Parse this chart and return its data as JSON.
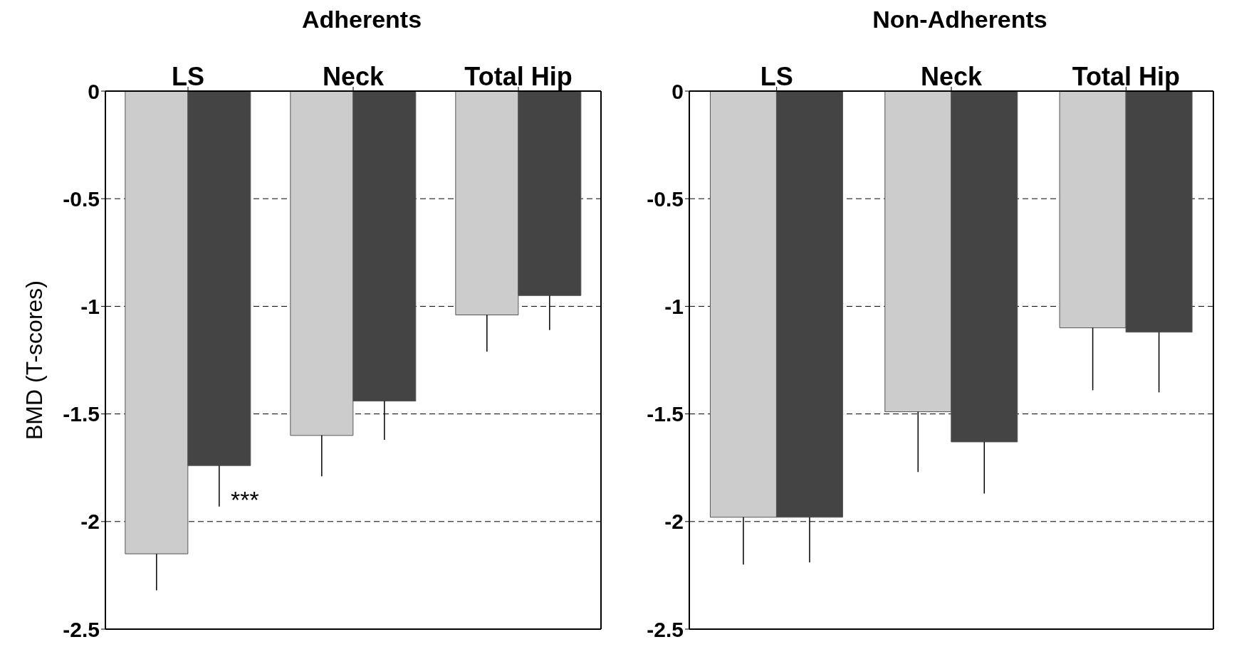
{
  "chart_data": [
    {
      "type": "bar",
      "title": "Adherents",
      "ylabel": "BMD (T-scores)",
      "categories": [
        "LS",
        "Neck",
        "Total Hip"
      ],
      "series": [
        {
          "color": "#cccccc",
          "values": [
            -2.15,
            -1.6,
            -1.04
          ],
          "errors": [
            [
              -2.32,
              -2.15
            ],
            [
              -1.79,
              -1.6
            ],
            [
              -1.21,
              -1.04
            ]
          ]
        },
        {
          "color": "#444444",
          "values": [
            -1.74,
            -1.44,
            -0.95
          ],
          "errors": [
            [
              -1.93,
              -1.74
            ],
            [
              -1.62,
              -1.44
            ],
            [
              -1.11,
              -0.95
            ]
          ]
        }
      ],
      "ylim": [
        -2.5,
        0
      ],
      "yticks": [
        0,
        -0.5,
        -1,
        -1.5,
        -2,
        -2.5
      ],
      "grid": "y",
      "legend": false,
      "annotations": [
        "***"
      ]
    },
    {
      "type": "bar",
      "title": "Non-Adherents",
      "categories": [
        "LS",
        "Neck",
        "Total Hip"
      ],
      "series": [
        {
          "color": "#cccccc",
          "values": [
            -1.98,
            -1.49,
            -1.1
          ],
          "errors": [
            [
              -2.2,
              -1.98
            ],
            [
              -1.77,
              -1.49
            ],
            [
              -1.39,
              -1.1
            ]
          ]
        },
        {
          "color": "#444444",
          "values": [
            -1.98,
            -1.63,
            -1.12
          ],
          "errors": [
            [
              -2.19,
              -1.98
            ],
            [
              -1.87,
              -1.63
            ],
            [
              -1.4,
              -1.12
            ]
          ]
        }
      ],
      "ylim": [
        -2.5,
        0
      ],
      "yticks": [
        0,
        -0.5,
        -1,
        -1.5,
        -2,
        -2.5
      ],
      "grid": "y",
      "legend": false
    }
  ]
}
